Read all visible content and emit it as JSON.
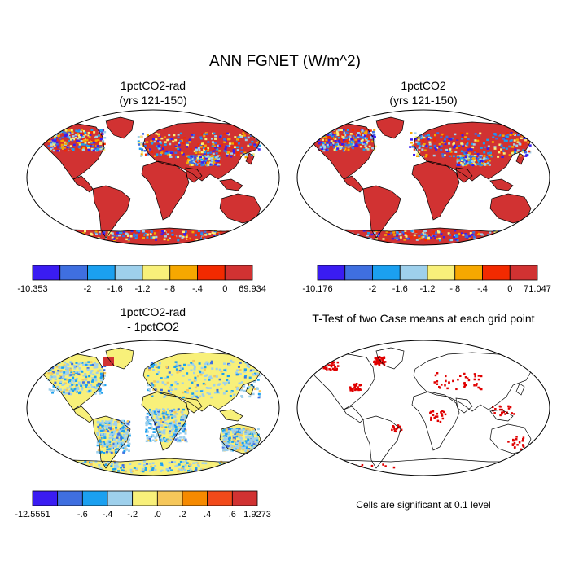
{
  "title": "ANN FGNET (W/m^2)",
  "panels": [
    {
      "id": "p1",
      "title_lines": [
        "1pctCO2-rad",
        "(yrs 121-150)"
      ],
      "scheme": "case",
      "colorbar": {
        "colors": [
          "#3a1cf2",
          "#3f6fe0",
          "#1ba0f0",
          "#9ed0ec",
          "#f8f07a",
          "#f6a800",
          "#f22a00",
          "#d13232"
        ],
        "labels": [
          "-10.353",
          "-2",
          "-1.6",
          "-1.2",
          "-.8",
          "-.4",
          "0",
          "69.934"
        ]
      }
    },
    {
      "id": "p2",
      "title_lines": [
        "1pctCO2",
        "(yrs 121-150)"
      ],
      "scheme": "case",
      "colorbar": {
        "colors": [
          "#3a1cf2",
          "#3f6fe0",
          "#1ba0f0",
          "#9ed0ec",
          "#f8f07a",
          "#f6a800",
          "#f22a00",
          "#d13232"
        ],
        "labels": [
          "-10.176",
          "-2",
          "-1.6",
          "-1.2",
          "-.8",
          "-.4",
          "0",
          "71.047"
        ]
      }
    },
    {
      "id": "p3",
      "title_lines": [
        "1pctCO2-rad",
        "- 1pctCO2"
      ],
      "scheme": "diff",
      "colorbar": {
        "colors": [
          "#3a1cf2",
          "#3f6fe0",
          "#1ba0f0",
          "#9ed0ec",
          "#f8f07a",
          "#f6c75a",
          "#f68a00",
          "#f24a1a",
          "#d13232"
        ],
        "labels": [
          "-12.5551",
          "-.6",
          "-.4",
          "-.2",
          ".0",
          ".2",
          ".4",
          ".6",
          "1.9273"
        ]
      }
    },
    {
      "id": "p4",
      "title_lines": [
        "T-Test of two Case means at each grid point"
      ],
      "scheme": "ttest",
      "note": "Cells are significant at 0.1 level"
    }
  ],
  "colors": {
    "land_case": "#d13232",
    "land_diff_main": "#f8f07a",
    "land_diff_alt": "#9ed0ec",
    "significant": "#e00000",
    "outline": "#000000"
  }
}
